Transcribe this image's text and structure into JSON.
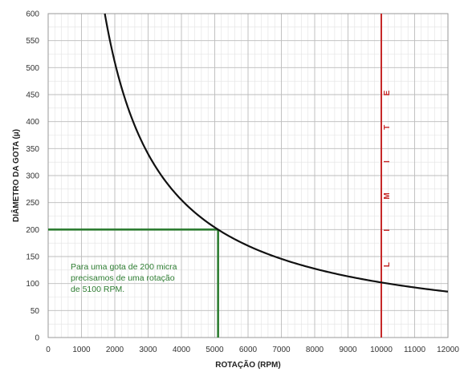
{
  "chart_data": {
    "type": "line",
    "title": "",
    "xlabel": "ROTAÇÃO (RPM)",
    "ylabel": "DIÂMETRO DA GOTA (µ)",
    "xlim": [
      0,
      12000
    ],
    "ylim": [
      0,
      600
    ],
    "x_major_ticks": [
      0,
      1000,
      2000,
      3000,
      4000,
      5000,
      6000,
      7000,
      8000,
      9000,
      10000,
      11000,
      12000
    ],
    "y_major_ticks": [
      0,
      50,
      100,
      150,
      200,
      250,
      300,
      350,
      400,
      450,
      500,
      550,
      600
    ],
    "grid": true,
    "series": [
      {
        "x": [
          1850,
          2000,
          2500,
          3000,
          3500,
          4000,
          4500,
          5100,
          6000,
          7000,
          8000,
          9000,
          10000,
          11000,
          12000
        ],
        "y": [
          600,
          515,
          375,
          290,
          235,
          198,
          170,
          200,
          162,
          137,
          120,
          108,
          98,
          89,
          81
        ]
      }
    ],
    "reference_point": {
      "x": 5100,
      "y": 200
    },
    "limit_line": {
      "x": 10000,
      "label": "LIMITE"
    },
    "annotation": "Para uma gota de 200 micra precisamos de uma rotação de 5100 RPM.",
    "colors": {
      "curve": "#111111",
      "reference": "#2e7d32",
      "limit": "#c62828",
      "grid_major": "#bcbcbc",
      "grid_minor": "#e2e2e2"
    }
  }
}
